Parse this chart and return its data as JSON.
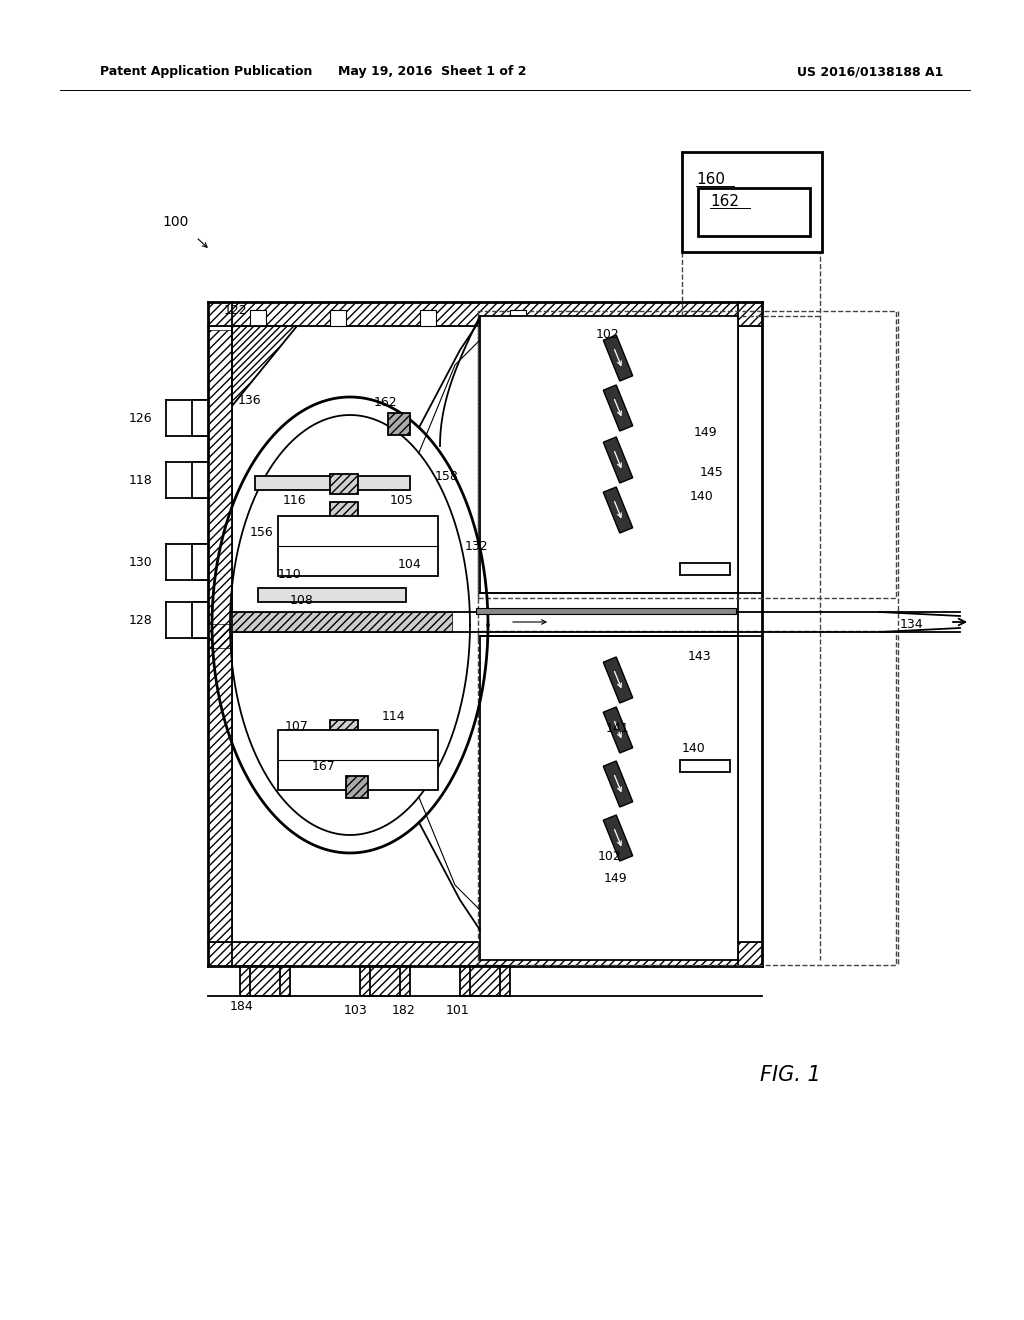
{
  "header_left": "Patent Application Publication",
  "header_mid": "May 19, 2016  Sheet 1 of 2",
  "header_right": "US 2016/0138188 A1",
  "fig_label": "FIG. 1",
  "bg_color": "#ffffff",
  "lc": "#000000",
  "wall_hatch": "////",
  "gray_fill": "#cccccc",
  "dark_fill": "#555555",
  "light_fill": "#eeeeee",
  "med_fill": "#999999"
}
